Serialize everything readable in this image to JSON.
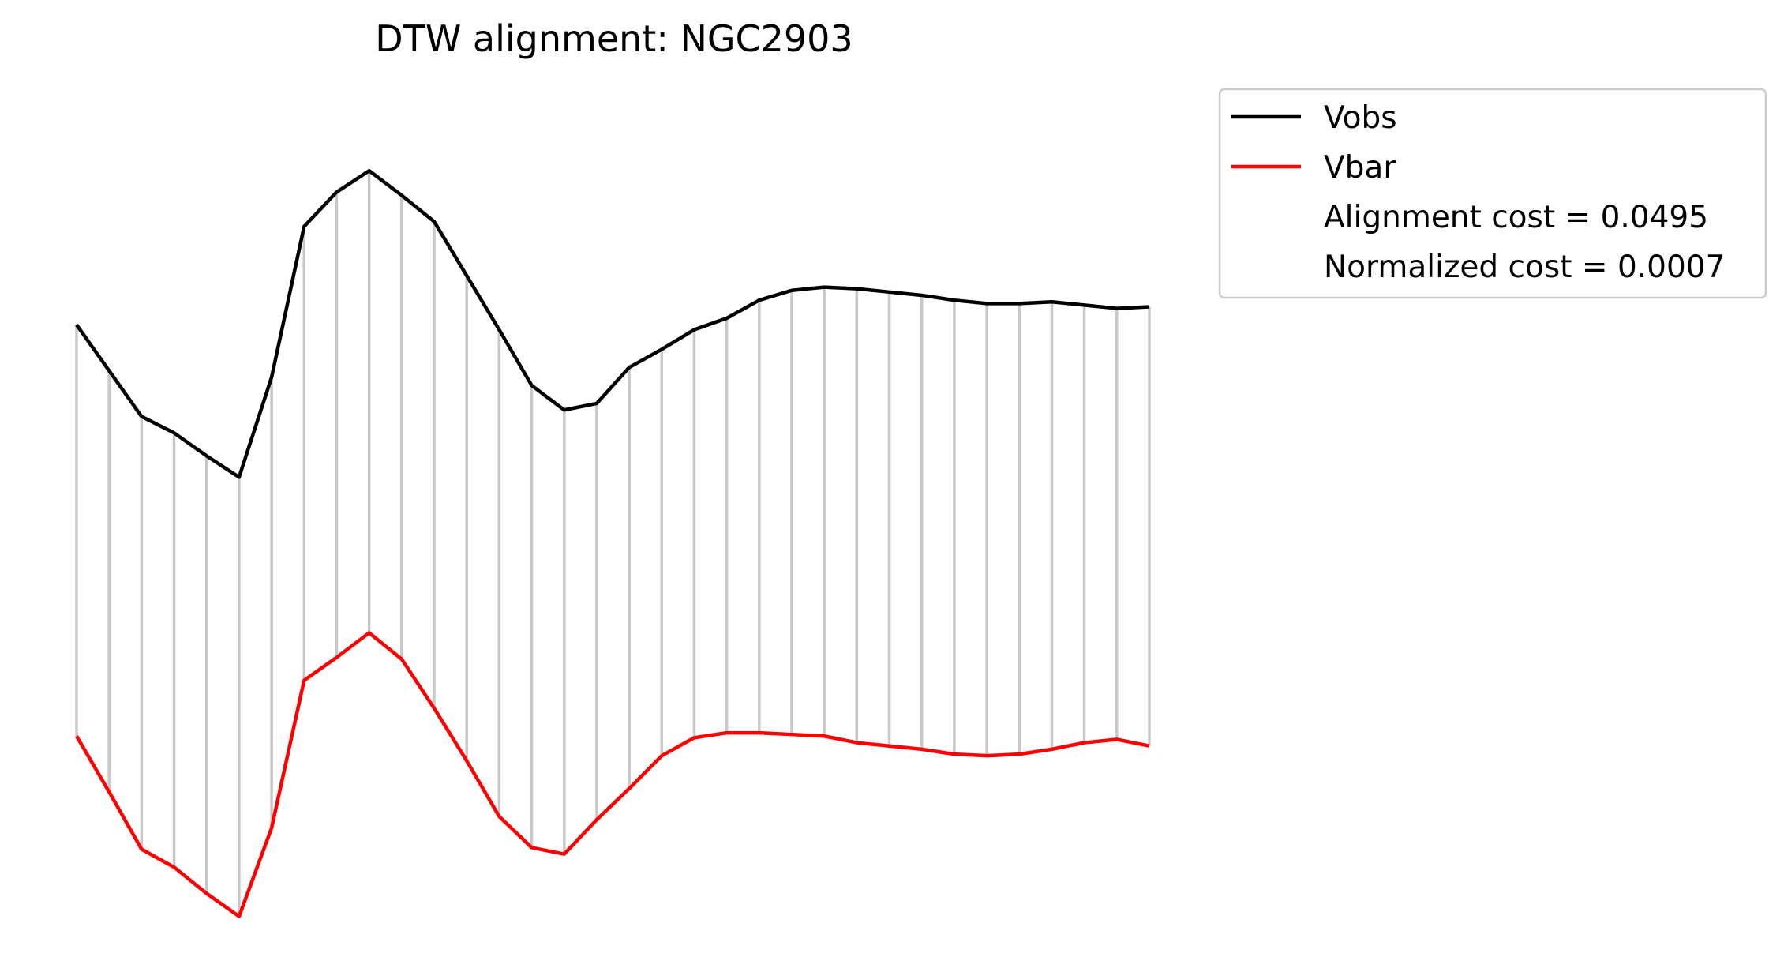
{
  "chart_data": {
    "type": "line",
    "title": "DTW alignment: NGC2903",
    "xlabel": "",
    "ylabel": "",
    "axes_visible": false,
    "grid": false,
    "legend_position": "outside-top-right",
    "connector_color": "#c8c8c8",
    "x": [
      0,
      1,
      2,
      3,
      4,
      5,
      6,
      7,
      8,
      9,
      10,
      11,
      12,
      13,
      14,
      15,
      16,
      17,
      18,
      19,
      20,
      21,
      22,
      23,
      24,
      25,
      26,
      27,
      28,
      29,
      30,
      31,
      32,
      33
    ],
    "series": [
      {
        "name": "Vobs",
        "color": "#000000",
        "values": [
          1.9,
          2.18,
          2.46,
          2.56,
          2.7,
          2.83,
          2.22,
          1.3,
          1.09,
          0.96,
          1.11,
          1.27,
          1.6,
          1.93,
          2.27,
          2.42,
          2.38,
          2.16,
          2.05,
          1.93,
          1.86,
          1.75,
          1.69,
          1.67,
          1.68,
          1.7,
          1.72,
          1.75,
          1.77,
          1.77,
          1.76,
          1.78,
          1.8,
          1.79
        ]
      },
      {
        "name": "Vbar",
        "color": "#ff0000",
        "values": [
          4.41,
          4.75,
          5.1,
          5.21,
          5.37,
          5.51,
          4.97,
          4.07,
          3.93,
          3.78,
          3.94,
          4.24,
          4.56,
          4.9,
          5.09,
          5.13,
          4.92,
          4.73,
          4.53,
          4.42,
          4.39,
          4.39,
          4.4,
          4.41,
          4.45,
          4.47,
          4.49,
          4.52,
          4.53,
          4.52,
          4.49,
          4.45,
          4.43,
          4.47
        ]
      }
    ],
    "ylim": [
      0.4,
      5.7
    ],
    "y_inverted": true,
    "annotations": [
      "Alignment cost = 0.0495",
      "Normalized cost = 0.0007"
    ]
  }
}
